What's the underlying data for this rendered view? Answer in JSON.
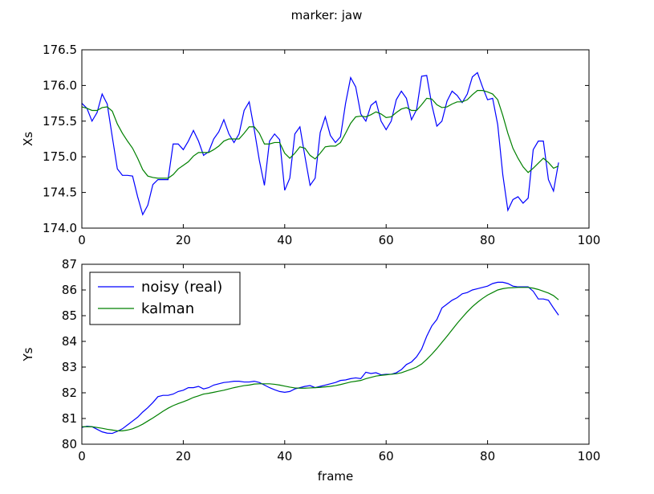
{
  "figure": {
    "title": "marker: jaw"
  },
  "colors": {
    "noisy": "#0000ff",
    "kalman": "#008000"
  },
  "chart_data": [
    {
      "type": "line",
      "title": "",
      "xlabel": "",
      "ylabel": "Xs",
      "xlim": [
        0,
        100
      ],
      "ylim": [
        174.0,
        176.5
      ],
      "xticks": [
        0,
        20,
        40,
        60,
        80,
        100
      ],
      "yticks": [
        174.0,
        174.5,
        175.0,
        175.5,
        176.0,
        176.5
      ],
      "xtick_labels": [
        "0",
        "20",
        "40",
        "60",
        "80",
        "100"
      ],
      "ytick_labels": [
        "174.0",
        "174.5",
        "175.0",
        "175.5",
        "176.0",
        "176.5"
      ],
      "legend": null,
      "x": [
        0,
        1,
        2,
        3,
        4,
        5,
        6,
        7,
        8,
        9,
        10,
        11,
        12,
        13,
        14,
        15,
        16,
        17,
        18,
        19,
        20,
        21,
        22,
        23,
        24,
        25,
        26,
        27,
        28,
        29,
        30,
        31,
        32,
        33,
        34,
        35,
        36,
        37,
        38,
        39,
        40,
        41,
        42,
        43,
        44,
        45,
        46,
        47,
        48,
        49,
        50,
        51,
        52,
        53,
        54,
        55,
        56,
        57,
        58,
        59,
        60,
        61,
        62,
        63,
        64,
        65,
        66,
        67,
        68,
        69,
        70,
        71,
        72,
        73,
        74,
        75,
        76,
        77,
        78,
        79,
        80,
        81,
        82,
        83,
        84,
        85,
        86,
        87,
        88,
        89,
        90,
        91,
        92,
        93,
        94
      ],
      "series": [
        {
          "name": "noisy (real)",
          "color": "#0000ff",
          "values": [
            175.75,
            175.68,
            175.5,
            175.62,
            175.88,
            175.74,
            175.28,
            174.83,
            174.74,
            174.74,
            174.73,
            174.44,
            174.19,
            174.32,
            174.61,
            174.68,
            174.68,
            174.68,
            175.18,
            175.18,
            175.1,
            175.22,
            175.37,
            175.22,
            175.02,
            175.07,
            175.25,
            175.35,
            175.52,
            175.32,
            175.2,
            175.32,
            175.65,
            175.77,
            175.38,
            174.95,
            174.6,
            175.22,
            175.32,
            175.24,
            174.53,
            174.7,
            175.32,
            175.42,
            175.0,
            174.6,
            174.7,
            175.34,
            175.56,
            175.3,
            175.2,
            175.28,
            175.75,
            176.11,
            175.98,
            175.6,
            175.5,
            175.72,
            175.78,
            175.5,
            175.38,
            175.5,
            175.8,
            175.92,
            175.82,
            175.52,
            175.66,
            176.13,
            176.14,
            175.73,
            175.43,
            175.5,
            175.78,
            175.92,
            175.86,
            175.76,
            175.88,
            176.12,
            176.18,
            175.98,
            175.8,
            175.82,
            175.45,
            174.75,
            174.25,
            174.4,
            174.44,
            174.35,
            174.42,
            175.1,
            175.22,
            175.22,
            174.68,
            174.52,
            174.92
          ]
        },
        {
          "name": "kalman",
          "color": "#008000",
          "values": [
            175.7,
            175.68,
            175.65,
            175.65,
            175.69,
            175.7,
            175.64,
            175.46,
            175.33,
            175.22,
            175.12,
            174.98,
            174.82,
            174.73,
            174.71,
            174.7,
            174.7,
            174.7,
            174.75,
            174.83,
            174.88,
            174.93,
            175.01,
            175.06,
            175.06,
            175.06,
            175.1,
            175.15,
            175.22,
            175.25,
            175.25,
            175.25,
            175.33,
            175.42,
            175.42,
            175.33,
            175.18,
            175.18,
            175.2,
            175.2,
            175.05,
            174.98,
            175.05,
            175.14,
            175.12,
            175.02,
            174.97,
            175.05,
            175.14,
            175.15,
            175.15,
            175.2,
            175.33,
            175.47,
            175.56,
            175.57,
            175.56,
            175.59,
            175.63,
            175.6,
            175.55,
            175.56,
            175.62,
            175.67,
            175.69,
            175.65,
            175.65,
            175.73,
            175.82,
            175.81,
            175.73,
            175.69,
            175.7,
            175.74,
            175.77,
            175.77,
            175.8,
            175.87,
            175.93,
            175.93,
            175.91,
            175.88,
            175.8,
            175.58,
            175.33,
            175.12,
            174.98,
            174.86,
            174.78,
            174.84,
            174.91,
            174.98,
            174.92,
            174.84,
            174.87
          ]
        }
      ]
    },
    {
      "type": "line",
      "title": "",
      "xlabel": "frame",
      "ylabel": "Ys",
      "xlim": [
        0,
        100
      ],
      "ylim": [
        80,
        87
      ],
      "xticks": [
        0,
        20,
        40,
        60,
        80,
        100
      ],
      "yticks": [
        80,
        81,
        82,
        83,
        84,
        85,
        86,
        87
      ],
      "xtick_labels": [
        "0",
        "20",
        "40",
        "60",
        "80",
        "100"
      ],
      "ytick_labels": [
        "80",
        "81",
        "82",
        "83",
        "84",
        "85",
        "86",
        "87"
      ],
      "legend": "upper left",
      "x": [
        0,
        1,
        2,
        3,
        4,
        5,
        6,
        7,
        8,
        9,
        10,
        11,
        12,
        13,
        14,
        15,
        16,
        17,
        18,
        19,
        20,
        21,
        22,
        23,
        24,
        25,
        26,
        27,
        28,
        29,
        30,
        31,
        32,
        33,
        34,
        35,
        36,
        37,
        38,
        39,
        40,
        41,
        42,
        43,
        44,
        45,
        46,
        47,
        48,
        49,
        50,
        51,
        52,
        53,
        54,
        55,
        56,
        57,
        58,
        59,
        60,
        61,
        62,
        63,
        64,
        65,
        66,
        67,
        68,
        69,
        70,
        71,
        72,
        73,
        74,
        75,
        76,
        77,
        78,
        79,
        80,
        81,
        82,
        83,
        84,
        85,
        86,
        87,
        88,
        89,
        90,
        91,
        92,
        93,
        94
      ],
      "series": [
        {
          "name": "noisy (real)",
          "color": "#0000ff",
          "values": [
            80.65,
            80.7,
            80.68,
            80.58,
            80.48,
            80.43,
            80.42,
            80.5,
            80.6,
            80.75,
            80.9,
            81.05,
            81.25,
            81.42,
            81.62,
            81.85,
            81.9,
            81.9,
            81.95,
            82.05,
            82.1,
            82.2,
            82.2,
            82.25,
            82.15,
            82.2,
            82.3,
            82.35,
            82.4,
            82.42,
            82.45,
            82.45,
            82.42,
            82.42,
            82.45,
            82.4,
            82.3,
            82.2,
            82.12,
            82.05,
            82.02,
            82.05,
            82.15,
            82.2,
            82.25,
            82.28,
            82.2,
            82.25,
            82.3,
            82.35,
            82.4,
            82.48,
            82.5,
            82.55,
            82.58,
            82.55,
            82.8,
            82.75,
            82.78,
            82.7,
            82.72,
            82.72,
            82.78,
            82.9,
            83.1,
            83.2,
            83.4,
            83.7,
            84.2,
            84.6,
            84.85,
            85.3,
            85.45,
            85.6,
            85.7,
            85.85,
            85.9,
            86.0,
            86.05,
            86.1,
            86.15,
            86.25,
            86.3,
            86.3,
            86.25,
            86.15,
            86.12,
            86.12,
            86.12,
            85.95,
            85.65,
            85.65,
            85.6,
            85.3,
            85.02
          ]
        },
        {
          "name": "kalman",
          "color": "#008000",
          "values": [
            80.68,
            80.68,
            80.68,
            80.65,
            80.62,
            80.58,
            80.55,
            80.52,
            80.52,
            80.55,
            80.6,
            80.68,
            80.78,
            80.9,
            81.02,
            81.15,
            81.28,
            81.4,
            81.5,
            81.58,
            81.65,
            81.73,
            81.82,
            81.88,
            81.95,
            81.98,
            82.02,
            82.06,
            82.1,
            82.15,
            82.2,
            82.24,
            82.28,
            82.3,
            82.34,
            82.35,
            82.35,
            82.35,
            82.33,
            82.3,
            82.26,
            82.22,
            82.19,
            82.18,
            82.18,
            82.19,
            82.2,
            82.21,
            82.23,
            82.25,
            82.28,
            82.32,
            82.37,
            82.42,
            82.45,
            82.48,
            82.55,
            82.6,
            82.65,
            82.68,
            82.7,
            82.72,
            82.74,
            82.78,
            82.85,
            82.92,
            83.0,
            83.12,
            83.3,
            83.5,
            83.72,
            83.96,
            84.2,
            84.45,
            84.7,
            84.93,
            85.15,
            85.35,
            85.52,
            85.67,
            85.8,
            85.9,
            86.0,
            86.05,
            86.08,
            86.09,
            86.1,
            86.1,
            86.1,
            86.07,
            86.02,
            85.95,
            85.88,
            85.78,
            85.62
          ]
        }
      ]
    }
  ]
}
